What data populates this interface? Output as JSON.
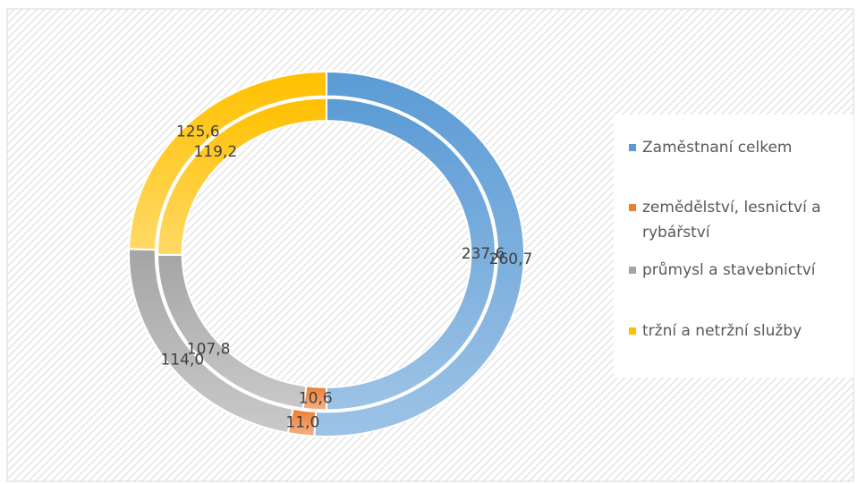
{
  "chart_data": {
    "type": "doughnut",
    "categories": [
      "Zaměstnaní celkem",
      "zemědělství, lesnictví a rybářství",
      "průmysl a stavebnictví",
      "tržní a netržní služby"
    ],
    "colors": [
      "#5b9bd5",
      "#ed7d31",
      "#a5a5a5",
      "#ffc000"
    ],
    "series": [
      {
        "values": [
          260.7,
          11.0,
          114.0,
          125.6
        ],
        "value_labels": [
          "260,7",
          "11,0",
          "114,0",
          "125,6"
        ]
      },
      {
        "values": [
          237.6,
          10.6,
          107.8,
          119.2
        ],
        "value_labels": [
          "237,6",
          "10,6",
          "107,8",
          "119,2"
        ]
      }
    ],
    "legend": "right"
  }
}
